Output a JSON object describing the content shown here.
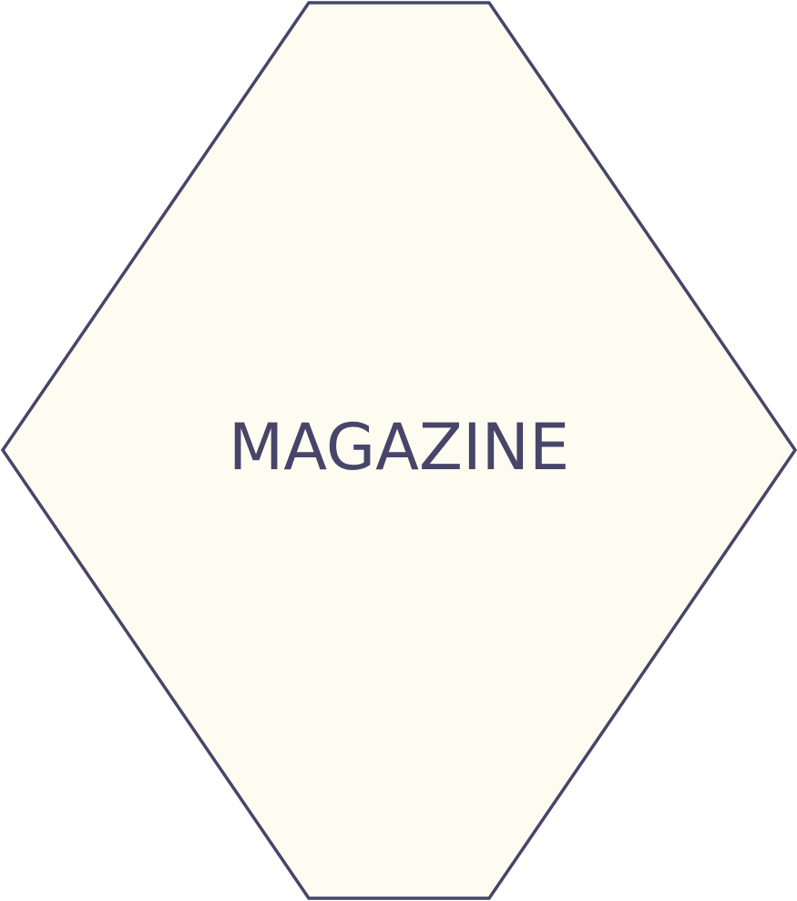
{
  "diagram": {
    "shape": "hexagon",
    "label": "MAGAZINE",
    "colors": {
      "fill": "#FEFCF1",
      "stroke": "#474569",
      "text": "#474569"
    }
  }
}
